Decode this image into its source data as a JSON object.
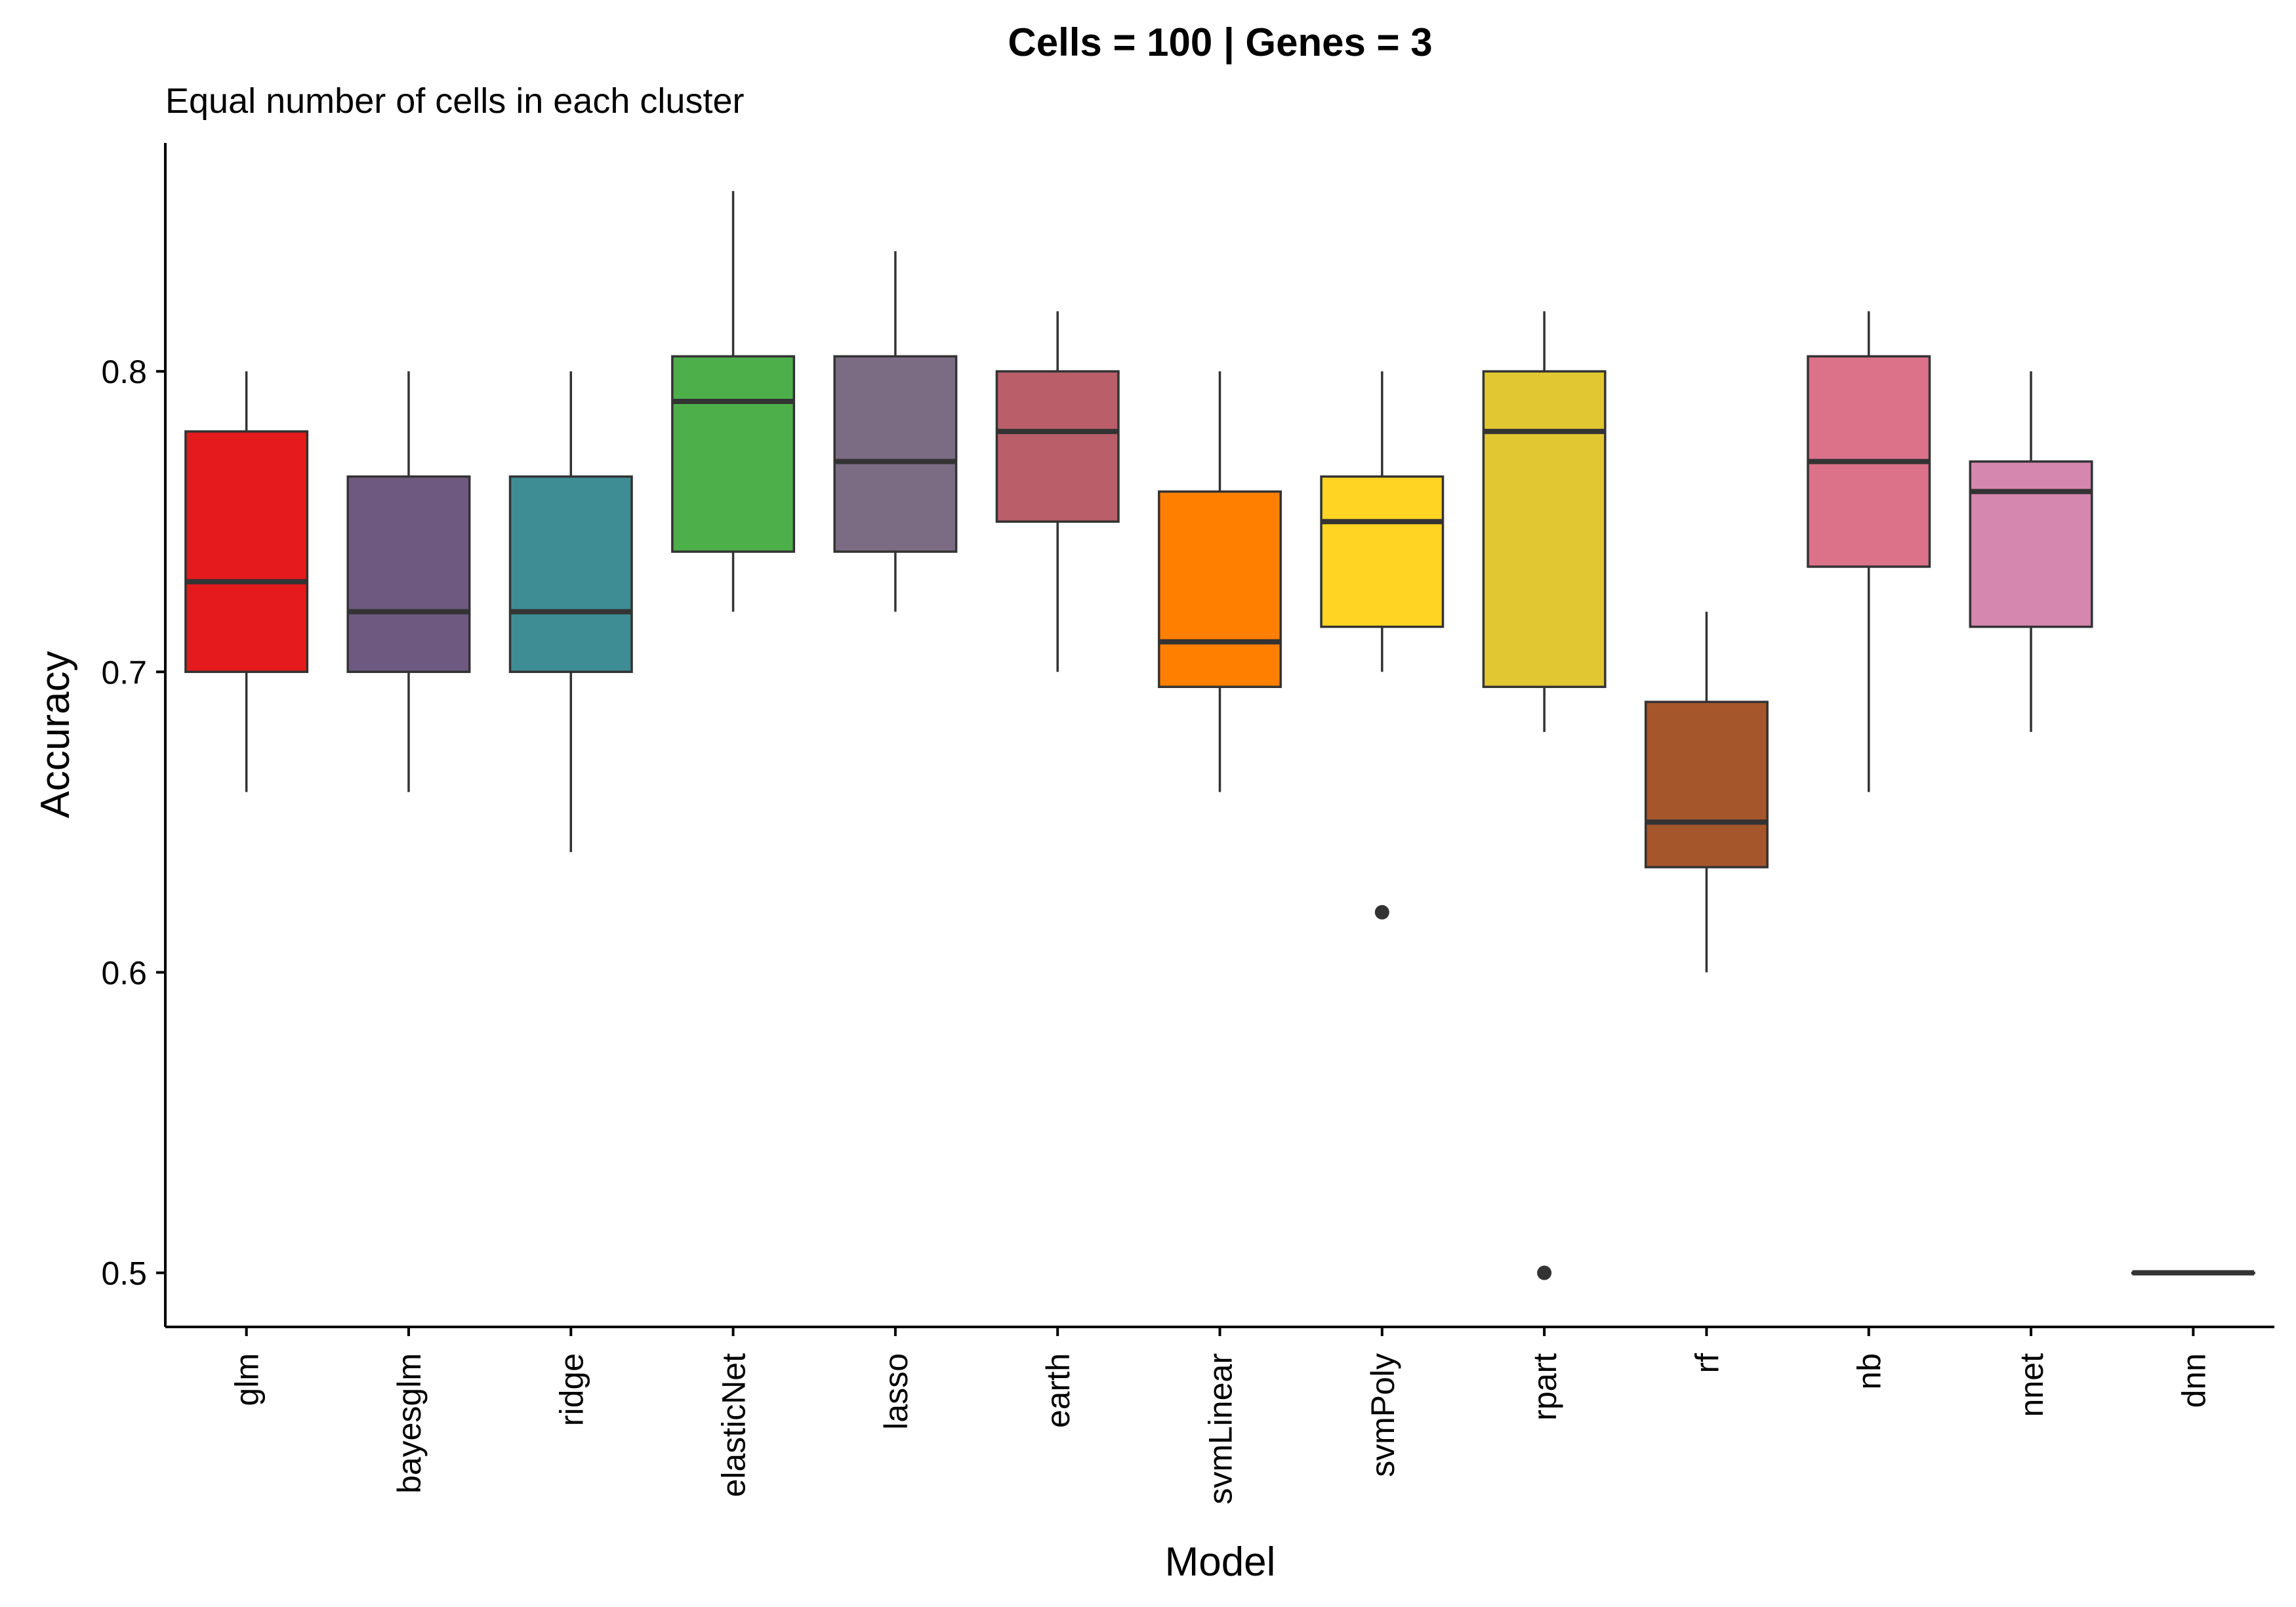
{
  "chart_data": {
    "type": "box",
    "title": "Cells = 100 | Genes = 3",
    "subtitle": "Equal number of cells in each cluster",
    "xlabel": "Model",
    "ylabel": "Accuracy",
    "ylim": [
      0.482,
      0.876
    ],
    "yticks": [
      "0.5",
      "0.6",
      "0.7",
      "0.8"
    ],
    "grid": false,
    "legend": "none",
    "categories": [
      "glm",
      "bayesglm",
      "ridge",
      "elasticNet",
      "lasso",
      "earth",
      "svmLinear",
      "svmPoly",
      "rpart",
      "rf",
      "nb",
      "nnet",
      "dnn"
    ],
    "boxes": [
      {
        "label": "glm",
        "whisker_low": 0.66,
        "q1": 0.7,
        "median": 0.73,
        "q3": 0.78,
        "whisker_high": 0.8,
        "outliers": [],
        "color": "#E41A1C"
      },
      {
        "label": "bayesglm",
        "whisker_low": 0.66,
        "q1": 0.7,
        "median": 0.72,
        "q3": 0.765,
        "whisker_high": 0.8,
        "outliers": [],
        "color": "#6E5A80"
      },
      {
        "label": "ridge",
        "whisker_low": 0.64,
        "q1": 0.7,
        "median": 0.72,
        "q3": 0.765,
        "whisker_high": 0.8,
        "outliers": [],
        "color": "#3E8D94"
      },
      {
        "label": "elasticNet",
        "whisker_low": 0.72,
        "q1": 0.74,
        "median": 0.79,
        "q3": 0.805,
        "whisker_high": 0.86,
        "outliers": [],
        "color": "#4DAF4A"
      },
      {
        "label": "lasso",
        "whisker_low": 0.72,
        "q1": 0.74,
        "median": 0.77,
        "q3": 0.805,
        "whisker_high": 0.84,
        "outliers": [],
        "color": "#7B6C84"
      },
      {
        "label": "earth",
        "whisker_low": 0.7,
        "q1": 0.75,
        "median": 0.78,
        "q3": 0.8,
        "whisker_high": 0.82,
        "outliers": [],
        "color": "#BA5E6A"
      },
      {
        "label": "svmLinear",
        "whisker_low": 0.66,
        "q1": 0.695,
        "median": 0.71,
        "q3": 0.76,
        "whisker_high": 0.8,
        "outliers": [],
        "color": "#FF7F00"
      },
      {
        "label": "svmPoly",
        "whisker_low": 0.7,
        "q1": 0.715,
        "median": 0.75,
        "q3": 0.765,
        "whisker_high": 0.8,
        "outliers": [
          0.62
        ],
        "color": "#FFD422"
      },
      {
        "label": "rpart",
        "whisker_low": 0.68,
        "q1": 0.695,
        "median": 0.78,
        "q3": 0.8,
        "whisker_high": 0.82,
        "outliers": [
          0.5
        ],
        "color": "#E1C731"
      },
      {
        "label": "rf",
        "whisker_low": 0.6,
        "q1": 0.635,
        "median": 0.65,
        "q3": 0.69,
        "whisker_high": 0.72,
        "outliers": [],
        "color": "#A6562B"
      },
      {
        "label": "nb",
        "whisker_low": 0.66,
        "q1": 0.735,
        "median": 0.77,
        "q3": 0.805,
        "whisker_high": 0.82,
        "outliers": [],
        "color": "#DC718A"
      },
      {
        "label": "nnet",
        "whisker_low": 0.68,
        "q1": 0.715,
        "median": 0.76,
        "q3": 0.77,
        "whisker_high": 0.8,
        "outliers": [],
        "color": "#D687AF"
      },
      {
        "label": "dnn",
        "whisker_low": 0.5,
        "q1": 0.5,
        "median": 0.5,
        "q3": 0.5,
        "whisker_high": 0.5,
        "outliers": [],
        "color": "#F781BF"
      }
    ]
  }
}
